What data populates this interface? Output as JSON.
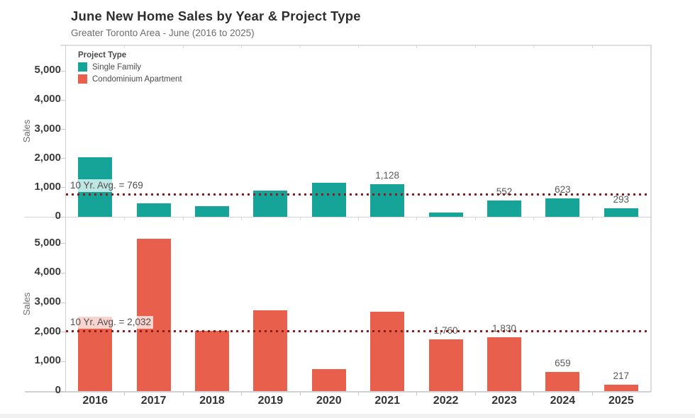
{
  "header": {
    "title_bold": "June",
    "title_rest": "New Home Sales by Year & Project Type",
    "subtitle": "Greater Toronto Area - June (2016 to 2025)"
  },
  "legend": {
    "title": "Project Type",
    "items": [
      {
        "label": "Single Family",
        "color": "#16A498"
      },
      {
        "label": "Condominium Apartment",
        "color": "#E8604C"
      }
    ]
  },
  "chart_data": {
    "type": "bar",
    "title": "June New Home Sales by Year & Project Type",
    "subtitle": "Greater Toronto Area - June (2016 to 2025)",
    "categories": [
      "2016",
      "2017",
      "2018",
      "2019",
      "2020",
      "2021",
      "2022",
      "2023",
      "2024",
      "2025"
    ],
    "xlabel": "",
    "grid": false,
    "legend_position": "top-left-inside",
    "panels": [
      {
        "name": "Single Family",
        "slug": "single-family",
        "ylabel": "Sales",
        "color": "#16A498",
        "ylim": [
          0,
          5880
        ],
        "yticks": [
          {
            "value": 0,
            "label": "0"
          },
          {
            "value": 1000,
            "label": "1,000"
          },
          {
            "value": 2000,
            "label": "2,000"
          },
          {
            "value": 3000,
            "label": "3,000"
          },
          {
            "value": 4000,
            "label": "4,000"
          },
          {
            "value": 5000,
            "label": "5,000"
          }
        ],
        "values": [
          2030,
          470,
          360,
          900,
          1160,
          1128,
          150,
          552,
          623,
          293
        ],
        "value_labels": [
          null,
          null,
          null,
          null,
          null,
          "1,128",
          null,
          "552",
          "623",
          "293"
        ],
        "ref_line": {
          "value": 769,
          "label": "10 Yr. Avg. = 769",
          "color": "#8E1B1B"
        }
      },
      {
        "name": "Condominium Apartment",
        "slug": "condominium-apartment",
        "ylabel": "Sales",
        "color": "#E8604C",
        "ylim": [
          0,
          5880
        ],
        "yticks": [
          {
            "value": 0,
            "label": "0"
          },
          {
            "value": 1000,
            "label": "1,000"
          },
          {
            "value": 2000,
            "label": "2,000"
          },
          {
            "value": 3000,
            "label": "3,000"
          },
          {
            "value": 4000,
            "label": "4,000"
          },
          {
            "value": 5000,
            "label": "5,000"
          }
        ],
        "values": [
          2520,
          5150,
          2040,
          2730,
          740,
          2700,
          1760,
          1830,
          659,
          217
        ],
        "value_labels": [
          null,
          null,
          null,
          null,
          null,
          null,
          "1,760",
          "1,830",
          "659",
          "217"
        ],
        "ref_line": {
          "value": 2032,
          "label": "10 Yr. Avg. = 2,032",
          "color": "#8E1B1B"
        }
      }
    ]
  }
}
